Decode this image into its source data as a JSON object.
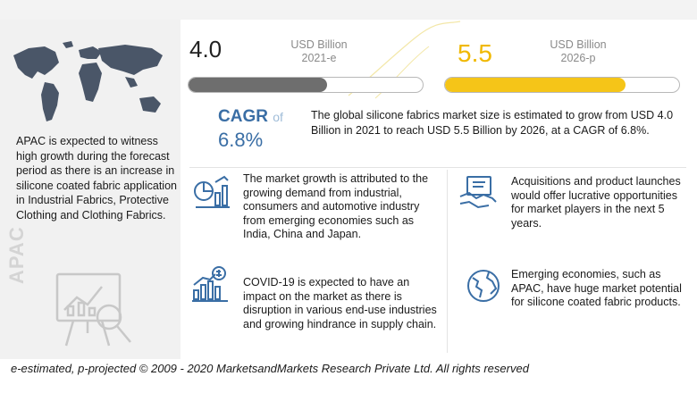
{
  "market": {
    "value_2021": "4.0",
    "unit_2021": "USD Billion",
    "year_2021": "2021-e",
    "value_2026": "5.5",
    "unit_2026": "USD Billion",
    "year_2026": "2026-p",
    "bar_fill_2021": 0.59,
    "bar_fill_2026": 0.77,
    "bar_colors": {
      "2021": "#6e6e6e",
      "2026": "#f5c518"
    }
  },
  "cagr": {
    "label": "CAGR",
    "of": "of",
    "value": "6.8%"
  },
  "summary": "The global silicone fabrics market size is estimated to grow from USD 4.0 Billion in 2021 to reach USD 5.5 Billion by 2026, at a CAGR of 6.8%.",
  "left_panel": {
    "apac_text": "APAC is expected to witness high growth during the forecast period as there is an increase  in silicone coated fabric application in Industrial Fabrics, Protective Clothing and Clothing Fabrics.",
    "region_label": "APAC"
  },
  "points": [
    {
      "icon": "growth-chart-icon",
      "text": "The market growth is attributed to the growing demand from industrial, consumers and automotive industry from emerging economies such as India, China and Japan."
    },
    {
      "icon": "dollar-bar-chart-icon",
      "text": "COVID-19 is expected to have an impact on the market as there is disruption in various end-use industries and growing hindrance in supply chain."
    },
    {
      "icon": "handshake-icon",
      "text": "Acquisitions and product launches would offer lucrative opportunities for market players in the next 5 years."
    },
    {
      "icon": "globe-icon",
      "text": "Emerging economies, such as APAC, have huge market potential for silicone coated fabric products."
    }
  ],
  "footer": "e-estimated, p-projected © 2009 - 2020 MarketsandMarkets Research Private Ltd. All rights reserved"
}
